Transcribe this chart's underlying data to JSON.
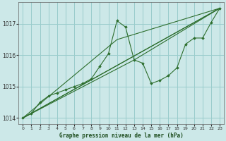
{
  "title": "Graphe pression niveau de la mer (hPa)",
  "bg_color": "#cce8e8",
  "grid_color": "#99cccc",
  "line_color": "#2d6e2d",
  "marker_color": "#2d6e2d",
  "xlim": [
    -0.5,
    23.5
  ],
  "ylim": [
    1013.8,
    1017.7
  ],
  "yticks": [
    1014,
    1015,
    1016,
    1017
  ],
  "xticks": [
    0,
    1,
    2,
    3,
    4,
    5,
    6,
    7,
    8,
    9,
    10,
    11,
    12,
    13,
    14,
    15,
    16,
    17,
    18,
    19,
    20,
    21,
    22,
    23
  ],
  "main_x": [
    0,
    1,
    2,
    3,
    4,
    5,
    6,
    7,
    8,
    9,
    10,
    11,
    12,
    13,
    14,
    15,
    16,
    17,
    18,
    19,
    20,
    21,
    22,
    23
  ],
  "main_y": [
    1014.0,
    1014.15,
    1014.5,
    1014.7,
    1014.8,
    1014.9,
    1015.0,
    1015.1,
    1015.25,
    1015.65,
    1016.05,
    1017.1,
    1016.9,
    1015.85,
    1015.75,
    1015.1,
    1015.2,
    1015.35,
    1015.6,
    1016.35,
    1016.55,
    1016.55,
    1017.05,
    1017.5
  ],
  "straight_lines": [
    {
      "x": [
        0,
        23
      ],
      "y": [
        1014.0,
        1017.5
      ]
    },
    {
      "x": [
        0,
        23
      ],
      "y": [
        1014.0,
        1017.5
      ]
    },
    {
      "x": [
        0,
        11,
        23
      ],
      "y": [
        1014.0,
        1016.5,
        1017.5
      ]
    },
    {
      "x": [
        0,
        13,
        23
      ],
      "y": [
        1014.0,
        1015.85,
        1017.5
      ]
    }
  ]
}
